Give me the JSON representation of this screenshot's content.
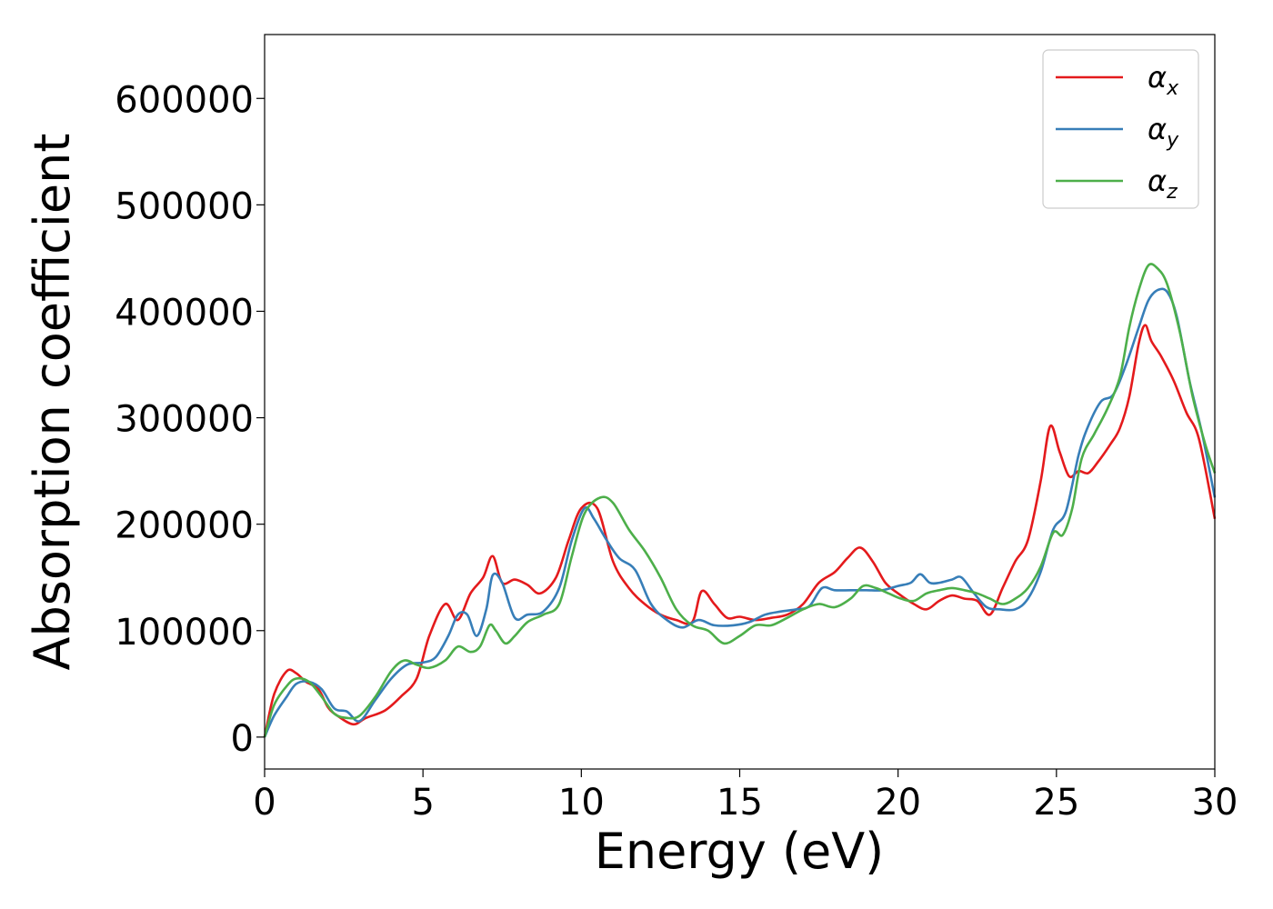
{
  "chart_data": {
    "type": "line",
    "title": "",
    "xlabel": "Energy (eV)",
    "ylabel": "Absorption coefficient",
    "xlim": [
      0,
      30
    ],
    "ylim": [
      -30000,
      660000
    ],
    "xticks": [
      0,
      5,
      10,
      15,
      20,
      25,
      30
    ],
    "yticks": [
      0,
      100000,
      200000,
      300000,
      400000,
      500000,
      600000
    ],
    "grid": false,
    "legend_position": "top-right",
    "series": [
      {
        "name": "α",
        "subscript": "x",
        "color": "#e41a1c",
        "x": [
          0,
          0.3,
          0.7,
          1.0,
          1.3,
          1.7,
          2.0,
          2.3,
          2.8,
          3.2,
          3.8,
          4.3,
          4.8,
          5.2,
          5.7,
          6.1,
          6.5,
          6.9,
          7.2,
          7.5,
          7.9,
          8.3,
          8.7,
          9.2,
          9.6,
          10.0,
          10.5,
          11.0,
          11.5,
          12.0,
          12.5,
          13.0,
          13.5,
          13.8,
          14.2,
          14.6,
          15.0,
          15.5,
          16.0,
          16.5,
          17.0,
          17.5,
          18.0,
          18.4,
          18.8,
          19.2,
          19.6,
          20.0,
          20.5,
          20.9,
          21.3,
          21.7,
          22.1,
          22.5,
          22.9,
          23.3,
          23.7,
          24.1,
          24.5,
          24.8,
          25.1,
          25.4,
          25.7,
          26.0,
          26.3,
          26.7,
          27.0,
          27.3,
          27.6,
          27.8,
          28.0,
          28.3,
          28.7,
          29.1,
          29.5,
          30.0
        ],
        "y": [
          0,
          40000,
          62000,
          60000,
          52000,
          45000,
          28000,
          20000,
          12000,
          18000,
          25000,
          38000,
          55000,
          95000,
          125000,
          110000,
          135000,
          150000,
          170000,
          145000,
          148000,
          143000,
          135000,
          150000,
          185000,
          215000,
          215000,
          165000,
          140000,
          125000,
          115000,
          110000,
          108000,
          137000,
          125000,
          112000,
          113000,
          110000,
          112000,
          115000,
          125000,
          145000,
          155000,
          168000,
          178000,
          165000,
          145000,
          135000,
          125000,
          120000,
          128000,
          133000,
          130000,
          128000,
          115000,
          140000,
          165000,
          185000,
          240000,
          292000,
          268000,
          245000,
          250000,
          248000,
          258000,
          275000,
          290000,
          320000,
          370000,
          387000,
          372000,
          358000,
          335000,
          305000,
          280000,
          205000
        ]
      },
      {
        "name": "α",
        "subscript": "y",
        "color": "#377eb8",
        "x": [
          0,
          0.3,
          0.7,
          1.0,
          1.4,
          1.8,
          2.2,
          2.6,
          3.0,
          3.5,
          4.0,
          4.5,
          5.0,
          5.4,
          5.8,
          6.1,
          6.4,
          6.7,
          7.0,
          7.2,
          7.5,
          7.9,
          8.3,
          8.8,
          9.3,
          9.7,
          10.1,
          10.4,
          10.8,
          11.2,
          11.7,
          12.2,
          12.7,
          13.2,
          13.7,
          14.2,
          14.8,
          15.3,
          15.8,
          16.3,
          16.8,
          17.2,
          17.6,
          18.0,
          18.5,
          19.0,
          19.5,
          20.0,
          20.4,
          20.7,
          21.0,
          21.3,
          21.7,
          22.0,
          22.4,
          22.8,
          23.2,
          23.7,
          24.1,
          24.5,
          24.9,
          25.3,
          25.7,
          26.0,
          26.4,
          26.8,
          27.2,
          27.6,
          27.9,
          28.2,
          28.5,
          28.8,
          29.2,
          29.6,
          30.0
        ],
        "y": [
          0,
          20000,
          38000,
          50000,
          52000,
          45000,
          27000,
          24000,
          15000,
          35000,
          55000,
          68000,
          70000,
          75000,
          95000,
          115000,
          115000,
          95000,
          120000,
          152000,
          145000,
          112000,
          115000,
          118000,
          140000,
          185000,
          215000,
          205000,
          185000,
          168000,
          157000,
          125000,
          110000,
          103000,
          110000,
          105000,
          105000,
          108000,
          115000,
          118000,
          120000,
          123000,
          140000,
          138000,
          138000,
          138000,
          138000,
          142000,
          145000,
          153000,
          145000,
          145000,
          148000,
          150000,
          135000,
          122000,
          120000,
          120000,
          130000,
          155000,
          195000,
          212000,
          265000,
          292000,
          315000,
          322000,
          350000,
          385000,
          410000,
          420000,
          418000,
          395000,
          335000,
          285000,
          225000
        ]
      },
      {
        "name": "α",
        "subscript": "z",
        "color": "#4daf4a",
        "x": [
          0,
          0.3,
          0.7,
          1.0,
          1.4,
          1.8,
          2.2,
          2.6,
          3.0,
          3.5,
          4.0,
          4.4,
          4.8,
          5.2,
          5.7,
          6.1,
          6.5,
          6.8,
          7.1,
          7.3,
          7.6,
          7.9,
          8.3,
          8.8,
          9.3,
          9.7,
          10.1,
          10.6,
          11.0,
          11.5,
          12.0,
          12.5,
          13.0,
          13.5,
          14.0,
          14.5,
          15.0,
          15.5,
          16.0,
          16.5,
          17.0,
          17.5,
          18.0,
          18.5,
          18.9,
          19.3,
          19.7,
          20.1,
          20.5,
          20.9,
          21.3,
          21.7,
          22.1,
          22.5,
          22.9,
          23.3,
          23.7,
          24.1,
          24.5,
          24.9,
          25.2,
          25.5,
          25.8,
          26.2,
          26.6,
          27.0,
          27.3,
          27.6,
          27.9,
          28.2,
          28.5,
          28.9,
          29.3,
          29.7,
          30.0
        ],
        "y": [
          0,
          30000,
          48000,
          55000,
          52000,
          38000,
          22000,
          18000,
          20000,
          38000,
          62000,
          72000,
          68000,
          65000,
          72000,
          85000,
          80000,
          85000,
          105000,
          100000,
          88000,
          95000,
          108000,
          115000,
          125000,
          170000,
          210000,
          225000,
          220000,
          195000,
          175000,
          150000,
          120000,
          105000,
          100000,
          88000,
          95000,
          105000,
          105000,
          112000,
          120000,
          125000,
          122000,
          130000,
          142000,
          140000,
          135000,
          130000,
          128000,
          135000,
          138000,
          140000,
          138000,
          135000,
          130000,
          125000,
          130000,
          140000,
          160000,
          192000,
          190000,
          215000,
          262000,
          285000,
          308000,
          338000,
          385000,
          420000,
          443000,
          440000,
          425000,
          380000,
          320000,
          275000,
          248000
        ]
      }
    ]
  }
}
